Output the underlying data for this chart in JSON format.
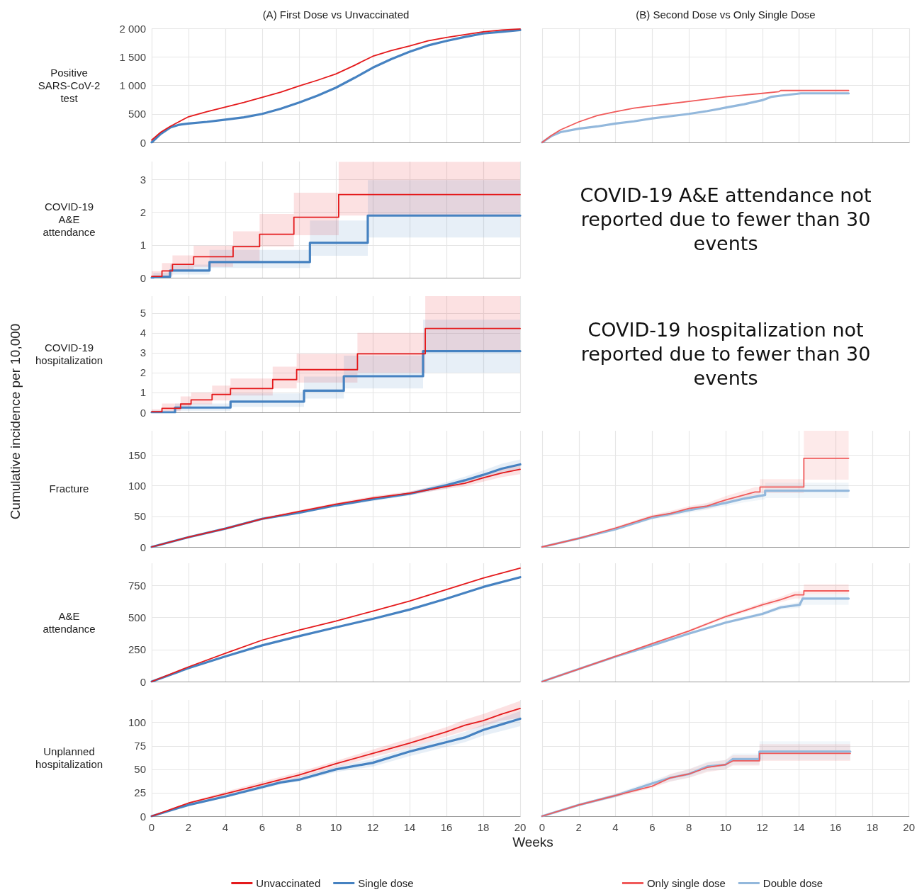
{
  "chart_data": [
    {
      "type": "line",
      "title": "(A) First Dose vs Unvaccinated",
      "ylabel": "Positive SARS-CoV-2 test",
      "xlim": [
        0,
        20
      ],
      "xticks": [
        0,
        2,
        4,
        6,
        8,
        10,
        12,
        14,
        16,
        18,
        20
      ],
      "ylim": [
        0,
        2000
      ],
      "yticks": [
        0,
        500,
        {
          "value": 1000,
          "label": "1 000"
        },
        {
          "value": 1500,
          "label": "1 500"
        },
        {
          "value": 2000,
          "label": "2 000"
        }
      ],
      "grid": true,
      "tick_labels": "y",
      "series": [
        {
          "color": "#e41a1c",
          "x": [
            0,
            0.5,
            1,
            2,
            3,
            4,
            5,
            6,
            7,
            8,
            9,
            10,
            11,
            12,
            13,
            14,
            15,
            16,
            17,
            18,
            19,
            20
          ],
          "values": [
            40,
            180,
            280,
            450,
            540,
            620,
            700,
            790,
            880,
            990,
            1090,
            1200,
            1350,
            1510,
            1610,
            1690,
            1780,
            1840,
            1890,
            1940,
            1970,
            1990
          ]
        },
        {
          "color": "#4682c1",
          "x": [
            0,
            0.5,
            1,
            1.5,
            2,
            3,
            4,
            5,
            6,
            7,
            8,
            9,
            10,
            11,
            12,
            13,
            14,
            15,
            16,
            17,
            18,
            19,
            20
          ],
          "values": [
            0,
            150,
            260,
            310,
            330,
            360,
            400,
            440,
            500,
            590,
            700,
            820,
            960,
            1130,
            1310,
            1460,
            1590,
            1700,
            1780,
            1850,
            1910,
            1940,
            1970
          ]
        }
      ]
    },
    {
      "type": "line",
      "title": "(B) Second Dose vs Only Single Dose",
      "xlim": [
        0,
        20
      ],
      "xticks": [
        0,
        2,
        4,
        6,
        8,
        10,
        12,
        14,
        16,
        18,
        20
      ],
      "ylim": [
        0,
        2000
      ],
      "yticks": [
        0,
        500,
        1000,
        1500,
        2000
      ],
      "grid": true,
      "tick_labels": false,
      "series": [
        {
          "color": "#f05a5a",
          "x": [
            0,
            0.5,
            1,
            2,
            3,
            4,
            5,
            6,
            7,
            8,
            9,
            10,
            11,
            12,
            12.9,
            13,
            16.7
          ],
          "values": [
            0,
            120,
            220,
            360,
            470,
            540,
            600,
            640,
            680,
            720,
            760,
            800,
            830,
            860,
            890,
            910,
            910
          ]
        },
        {
          "color": "#93b8dc",
          "x": [
            0,
            0.5,
            1,
            2,
            3,
            4,
            5,
            6,
            7,
            8,
            9,
            10,
            11,
            12,
            12.5,
            13,
            14.1,
            16.7
          ],
          "values": [
            0,
            110,
            180,
            240,
            280,
            330,
            370,
            420,
            460,
            500,
            550,
            610,
            670,
            740,
            800,
            820,
            860,
            860
          ]
        }
      ]
    },
    {
      "type": "step",
      "ylabel": "COVID-19 A&E attendance",
      "xlim": [
        0,
        20
      ],
      "xticks": [
        0,
        2,
        4,
        6,
        8,
        10,
        12,
        14,
        16,
        18,
        20
      ],
      "ylim": [
        0,
        3.55
      ],
      "yticks": [
        0,
        1,
        2,
        3
      ],
      "grid": true,
      "tick_labels": "y",
      "series": [
        {
          "color": "#e41a1c",
          "x": [
            0,
            0.56,
            1.13,
            2.28,
            4.42,
            5.86,
            7.72,
            10.15,
            20
          ],
          "values": [
            0.04,
            0.21,
            0.41,
            0.64,
            0.95,
            1.33,
            1.85,
            2.54,
            2.54
          ],
          "lower": [
            0,
            0.05,
            0.23,
            0.33,
            0.5,
            0.95,
            1.3,
            1.9,
            1.9
          ],
          "upper": [
            0.2,
            0.45,
            0.68,
            0.98,
            1.42,
            1.95,
            2.6,
            3.54,
            3.54
          ]
        },
        {
          "color": "#4682c1",
          "x": [
            0,
            0.09,
            1,
            3.14,
            8.59,
            11.73,
            20
          ],
          "values": [
            0,
            0.03,
            0.22,
            0.48,
            1.07,
            1.9,
            1.9
          ],
          "lower": [
            0,
            0,
            0.1,
            0.3,
            0.67,
            1.23,
            1.23
          ],
          "upper": [
            0.05,
            0.15,
            0.4,
            0.85,
            1.75,
            2.98,
            2.98
          ]
        }
      ]
    },
    {
      "type": "other",
      "annotations": [
        "COVID-19 A&E attendance not reported due to fewer than 30 events"
      ]
    },
    {
      "type": "step",
      "ylabel": "COVID-19 hospitalization",
      "annotations": [
        "Cumulative incidence per 10,000"
      ],
      "xlim": [
        0,
        20
      ],
      "xticks": [
        0,
        2,
        4,
        6,
        8,
        10,
        12,
        14,
        16,
        18,
        20
      ],
      "ylim": [
        0,
        5.85
      ],
      "yticks": [
        0,
        1,
        2,
        3,
        4,
        5
      ],
      "grid": true,
      "tick_labels": "y",
      "series": [
        {
          "color": "#e41a1c",
          "x": [
            0,
            0.56,
            1.57,
            2.14,
            3.28,
            4.28,
            6.57,
            7.87,
            11.17,
            14.85,
            20
          ],
          "values": [
            0.03,
            0.2,
            0.42,
            0.63,
            0.9,
            1.2,
            1.65,
            2.15,
            2.95,
            4.22,
            4.22
          ],
          "lower": [
            0,
            0.05,
            0.2,
            0.4,
            0.6,
            0.85,
            1.2,
            1.5,
            2.0,
            3.1,
            3.1
          ],
          "upper": [
            0.15,
            0.45,
            0.8,
            1.0,
            1.35,
            1.7,
            2.3,
            2.95,
            4.0,
            5.85,
            5.85
          ]
        },
        {
          "color": "#4682c1",
          "x": [
            0,
            1.27,
            4.28,
            8.27,
            10.43,
            14.73,
            20
          ],
          "values": [
            0,
            0.24,
            0.54,
            1.09,
            1.82,
            3.08,
            3.08
          ],
          "lower": [
            0,
            0.08,
            0.28,
            0.7,
            1.2,
            2.0,
            2.0
          ],
          "upper": [
            0.1,
            0.45,
            0.95,
            1.8,
            2.85,
            4.66,
            4.66
          ]
        }
      ]
    },
    {
      "type": "other",
      "annotations": [
        "COVID-19 hospitalization not reported due to fewer than 30 events"
      ]
    },
    {
      "type": "line",
      "ylabel": "Fracture",
      "xlim": [
        0,
        20
      ],
      "xticks": [
        0,
        2,
        4,
        6,
        8,
        10,
        12,
        14,
        16,
        18,
        20
      ],
      "ylim": [
        0,
        190
      ],
      "yticks": [
        0,
        50,
        100,
        150
      ],
      "grid": true,
      "tick_labels": "y",
      "series": [
        {
          "color": "#e41a1c",
          "x": [
            0,
            2,
            4,
            6,
            8,
            10,
            12,
            14,
            15,
            16,
            17,
            18,
            19,
            20
          ],
          "values": [
            0,
            16,
            30,
            46,
            58,
            70,
            80,
            88,
            93,
            99,
            104,
            113,
            121,
            127
          ],
          "lower": [
            0,
            15,
            29,
            44,
            56,
            68,
            77,
            85,
            90,
            95,
            99,
            107,
            114,
            119
          ],
          "upper": [
            0,
            17,
            32,
            48,
            60,
            72,
            83,
            91,
            97,
            103,
            109,
            118,
            127,
            134
          ]
        },
        {
          "color": "#4682c1",
          "x": [
            0,
            2,
            4,
            6,
            8,
            10,
            12,
            14,
            15,
            16,
            17,
            18,
            19,
            20
          ],
          "values": [
            0,
            16,
            30,
            46,
            56,
            68,
            78,
            87,
            94,
            101,
            109,
            118,
            128,
            135
          ],
          "lower": [
            0,
            15,
            29,
            44,
            54,
            66,
            75,
            84,
            90,
            96,
            103,
            111,
            120,
            127
          ],
          "upper": [
            0,
            17,
            31,
            48,
            58,
            70,
            81,
            90,
            98,
            106,
            115,
            125,
            136,
            143
          ]
        }
      ]
    },
    {
      "type": "line",
      "xlim": [
        0,
        20
      ],
      "xticks": [
        0,
        2,
        4,
        6,
        8,
        10,
        12,
        14,
        16,
        18,
        20
      ],
      "ylim": [
        0,
        190
      ],
      "yticks": [
        0,
        50,
        100,
        150
      ],
      "grid": true,
      "tick_labels": false,
      "series": [
        {
          "color": "#f05a5a",
          "x": [
            0,
            2,
            4,
            6,
            7,
            8,
            9,
            10,
            11,
            11.6,
            11.87,
            11.87,
            14.26,
            14.26,
            16.7
          ],
          "values": [
            0,
            14,
            31,
            50,
            55,
            63,
            67,
            77,
            85,
            90,
            90,
            98,
            98,
            145,
            145
          ],
          "lower": [
            0,
            13,
            29,
            47,
            51,
            59,
            62,
            71,
            78,
            82,
            82,
            88,
            88,
            110,
            110
          ],
          "upper": [
            0,
            15,
            33,
            53,
            59,
            67,
            72,
            83,
            92,
            98,
            98,
            111,
            111,
            190,
            190
          ]
        },
        {
          "color": "#93b8dc",
          "x": [
            0,
            2,
            4,
            6,
            7,
            8,
            9,
            10,
            11,
            12.15,
            12.15,
            16.7
          ],
          "values": [
            0,
            14,
            29,
            48,
            54,
            60,
            66,
            72,
            79,
            85,
            92,
            92
          ],
          "lower": [
            0,
            13,
            27,
            45,
            50,
            56,
            61,
            67,
            73,
            78,
            80,
            80
          ],
          "upper": [
            0,
            15,
            31,
            51,
            58,
            64,
            71,
            77,
            85,
            92,
            105,
            105
          ]
        }
      ]
    },
    {
      "type": "line",
      "ylabel": "A&E attendance",
      "xlim": [
        0,
        20
      ],
      "xticks": [
        0,
        2,
        4,
        6,
        8,
        10,
        12,
        14,
        16,
        18,
        20
      ],
      "ylim": [
        0,
        925
      ],
      "yticks": [
        0,
        250,
        500,
        750
      ],
      "grid": true,
      "tick_labels": "y",
      "series": [
        {
          "color": "#e41a1c",
          "x": [
            0,
            2,
            4,
            6,
            8,
            10,
            12,
            14,
            16,
            18,
            20
          ],
          "values": [
            0,
            115,
            221,
            324,
            402,
            473,
            551,
            629,
            719,
            809,
            887
          ]
        },
        {
          "color": "#4682c1",
          "x": [
            0,
            2,
            4,
            6,
            8,
            10,
            12,
            14,
            16,
            18,
            20
          ],
          "values": [
            0,
            105,
            197,
            283,
            355,
            424,
            490,
            563,
            648,
            740,
            816
          ]
        }
      ]
    },
    {
      "type": "line",
      "xlim": [
        0,
        20
      ],
      "xticks": [
        0,
        2,
        4,
        6,
        8,
        10,
        12,
        14,
        16,
        18,
        20
      ],
      "ylim": [
        0,
        925
      ],
      "yticks": [
        0,
        250,
        500,
        750
      ],
      "grid": true,
      "tick_labels": false,
      "series": [
        {
          "color": "#f05a5a",
          "x": [
            0,
            2,
            4,
            6,
            8,
            10,
            11,
            12,
            13,
            13.77,
            14.26,
            14.26,
            16.7
          ],
          "values": [
            0,
            98,
            197,
            297,
            395,
            508,
            553,
            600,
            641,
            678,
            678,
            709,
            709
          ],
          "lower": [
            0,
            95,
            192,
            290,
            385,
            495,
            538,
            583,
            620,
            650,
            650,
            682,
            682
          ],
          "upper": [
            0,
            101,
            202,
            304,
            405,
            521,
            568,
            617,
            662,
            705,
            705,
            760,
            760
          ]
        },
        {
          "color": "#93b8dc",
          "x": [
            0,
            2,
            4,
            6,
            8,
            10,
            12,
            13,
            14.03,
            14.2,
            16.7
          ],
          "values": [
            0,
            98,
            195,
            283,
            375,
            461,
            529,
            580,
            600,
            649,
            649
          ],
          "lower": [
            0,
            95,
            190,
            276,
            366,
            450,
            515,
            562,
            578,
            600,
            600
          ],
          "upper": [
            0,
            101,
            200,
            290,
            384,
            472,
            543,
            598,
            622,
            682,
            682
          ]
        }
      ]
    },
    {
      "type": "line",
      "ylabel": "Unplanned hospitalization",
      "xlabel": "Weeks",
      "legend": "bottom",
      "xlim": [
        0,
        20
      ],
      "xticks": [
        0,
        2,
        4,
        6,
        8,
        10,
        12,
        14,
        16,
        18,
        20
      ],
      "ylim": [
        0,
        124
      ],
      "yticks": [
        0,
        25,
        50,
        75,
        100
      ],
      "grid": true,
      "series": [
        {
          "name": "Unvaccinated",
          "color": "#e41a1c",
          "x": [
            0,
            2,
            4,
            6,
            7,
            8,
            10,
            12,
            14,
            15,
            16,
            17,
            18,
            19,
            20
          ],
          "values": [
            0,
            14,
            24,
            34,
            39,
            44,
            56,
            67,
            78,
            84,
            90,
            97,
            102,
            109,
            115
          ],
          "lower": [
            0,
            13,
            22,
            32,
            37,
            41,
            52,
            63,
            73,
            79,
            85,
            91,
            96,
            102,
            105
          ],
          "upper": [
            0,
            15,
            26,
            37,
            42,
            47,
            59,
            71,
            83,
            89,
            95,
            103,
            109,
            116,
            123
          ]
        },
        {
          "name": "Single dose",
          "color": "#4682c1",
          "x": [
            0,
            2,
            4,
            6,
            7,
            8,
            10,
            12,
            14,
            15,
            16,
            17,
            18,
            19,
            20
          ],
          "values": [
            0,
            12,
            21,
            31,
            36,
            39,
            50,
            57,
            69,
            74,
            79,
            84,
            92,
            98,
            104
          ],
          "lower": [
            0,
            11,
            20,
            29,
            34,
            37,
            47,
            53,
            64,
            69,
            74,
            79,
            86,
            91,
            96
          ],
          "upper": [
            0,
            13,
            23,
            33,
            38,
            42,
            53,
            61,
            73,
            79,
            84,
            90,
            98,
            105,
            112
          ]
        }
      ]
    },
    {
      "type": "line",
      "legend": "bottom",
      "xlim": [
        0,
        20
      ],
      "xticks": [
        0,
        2,
        4,
        6,
        8,
        10,
        12,
        14,
        16,
        18,
        20
      ],
      "ylim": [
        0,
        124
      ],
      "yticks": [
        0,
        25,
        50,
        75,
        100
      ],
      "grid": true,
      "tick_labels": "x",
      "series": [
        {
          "name": "Only single dose",
          "color": "#f05a5a",
          "x": [
            0,
            2,
            4,
            6,
            7,
            8,
            9,
            10,
            10.4,
            11.85,
            11.85,
            16.8
          ],
          "values": [
            0,
            12,
            22,
            32,
            41,
            45,
            52,
            55,
            59,
            59,
            67,
            67
          ],
          "lower": [
            0,
            11,
            20,
            30,
            37,
            41,
            47,
            50,
            54,
            54,
            59,
            59
          ],
          "upper": [
            0,
            13,
            24,
            35,
            45,
            50,
            57,
            60,
            65,
            65,
            77,
            77
          ]
        },
        {
          "name": "Double dose",
          "color": "#93b8dc",
          "x": [
            0,
            2,
            4,
            6,
            7,
            8,
            9,
            10,
            10.4,
            11.85,
            11.85,
            16.8
          ],
          "values": [
            0,
            12,
            22,
            35,
            41,
            45,
            53,
            55,
            61,
            61,
            69,
            69
          ],
          "lower": [
            0,
            11,
            20,
            32,
            37,
            41,
            48,
            50,
            55,
            55,
            60,
            60
          ],
          "upper": [
            0,
            13,
            24,
            38,
            45,
            50,
            58,
            60,
            67,
            67,
            80,
            80
          ]
        }
      ]
    }
  ]
}
